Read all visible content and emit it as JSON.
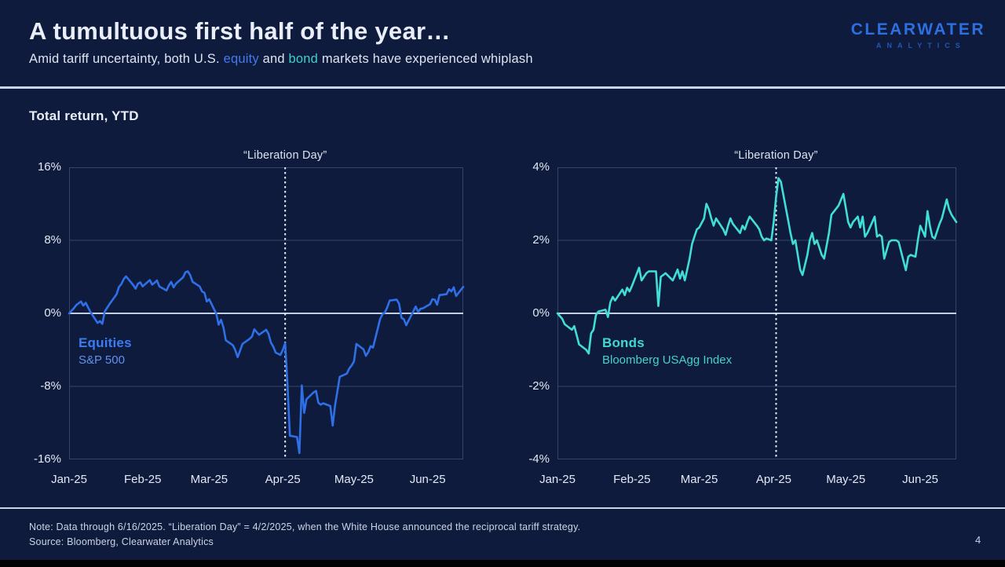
{
  "header": {
    "title": "A tumultuous first half of the year…",
    "subtitle_part1": "Amid tariff uncertainty, both U.S. ",
    "subtitle_equity_word": "equity",
    "subtitle_part2": " and ",
    "subtitle_bond_word": "bond",
    "subtitle_part3": " markets have experienced whiplash"
  },
  "logo": {
    "line1": "CLEARWATER",
    "line2": "ANALYTICS"
  },
  "section_label": "Total return, YTD",
  "footer": {
    "note": "Note: Data through 6/16/2025.  “Liberation Day” = 4/2/2025, when the White House announced the reciprocal tariff strategy.",
    "source": "Source: Bloomberg, Clearwater Analytics",
    "page_number": "4"
  },
  "colors": {
    "background": "#0e1b3d",
    "equity_blue": "#2f6fe8",
    "bond_teal": "#40ded6",
    "divider": "#ccd5ec",
    "zero_line": "#c4cee2",
    "gridline": "#35446b",
    "liberation_line": "#e8eef8"
  },
  "chart_data": [
    {
      "type": "line",
      "annotation": "“Liberation Day”",
      "annotation_day": 91,
      "annotation_meaning": "4/2/2025",
      "series_label": "Equities",
      "series_sublabel": "S&P 500",
      "line_color": "#2f6fe8",
      "label_color": "#3b7cf2",
      "sublabel_color": "#6190f0",
      "x_unit": "days since 2025-01-01",
      "y_unit": "percent, YTD total return",
      "x_range": [
        0,
        166
      ],
      "y_range": [
        -16,
        16
      ],
      "y_ticks": [
        {
          "value": 16,
          "label": "16%"
        },
        {
          "value": 8,
          "label": "8%"
        },
        {
          "value": 0,
          "label": "0%"
        },
        {
          "value": -8,
          "label": "-8%"
        },
        {
          "value": -16,
          "label": "-16%"
        }
      ],
      "x_ticks": [
        {
          "day": 0,
          "label": "Jan-25"
        },
        {
          "day": 31,
          "label": "Feb-25"
        },
        {
          "day": 59,
          "label": "Mar-25"
        },
        {
          "day": 90,
          "label": "Apr-25"
        },
        {
          "day": 120,
          "label": "May-25"
        },
        {
          "day": 151,
          "label": "Jun-25"
        }
      ],
      "points": [
        [
          0,
          0.0
        ],
        [
          2,
          0.55
        ],
        [
          3,
          0.9
        ],
        [
          5,
          1.3
        ],
        [
          6,
          0.85
        ],
        [
          7,
          1.15
        ],
        [
          9,
          0.15
        ],
        [
          12,
          -1.05
        ],
        [
          13,
          -0.85
        ],
        [
          14,
          -1.15
        ],
        [
          15,
          0.2
        ],
        [
          16,
          0.6
        ],
        [
          17,
          1.0
        ],
        [
          20,
          2.1
        ],
        [
          21,
          2.9
        ],
        [
          22,
          3.2
        ],
        [
          23,
          3.75
        ],
        [
          24,
          4.05
        ],
        [
          27,
          3.1
        ],
        [
          28,
          2.7
        ],
        [
          29,
          3.25
        ],
        [
          30,
          3.4
        ],
        [
          31,
          2.95
        ],
        [
          34,
          3.65
        ],
        [
          35,
          3.15
        ],
        [
          36,
          3.35
        ],
        [
          37,
          3.6
        ],
        [
          38,
          2.95
        ],
        [
          41,
          2.5
        ],
        [
          42,
          3.05
        ],
        [
          43,
          3.45
        ],
        [
          44,
          2.85
        ],
        [
          45,
          3.25
        ],
        [
          48,
          3.95
        ],
        [
          49,
          4.5
        ],
        [
          50,
          4.6
        ],
        [
          51,
          4.2
        ],
        [
          52,
          3.45
        ],
        [
          55,
          2.95
        ],
        [
          56,
          2.4
        ],
        [
          57,
          2.25
        ],
        [
          58,
          1.3
        ],
        [
          59,
          1.55
        ],
        [
          62,
          -0.05
        ],
        [
          63,
          -1.25
        ],
        [
          64,
          -0.7
        ],
        [
          65,
          -1.55
        ],
        [
          66,
          -2.95
        ],
        [
          69,
          -3.5
        ],
        [
          70,
          -4.05
        ],
        [
          71,
          -4.8
        ],
        [
          72,
          -4.1
        ],
        [
          73,
          -3.35
        ],
        [
          76,
          -2.8
        ],
        [
          77,
          -2.55
        ],
        [
          78,
          -1.75
        ],
        [
          79,
          -2.05
        ],
        [
          80,
          -2.35
        ],
        [
          83,
          -1.8
        ],
        [
          84,
          -2.25
        ],
        [
          85,
          -3.2
        ],
        [
          86,
          -3.65
        ],
        [
          87,
          -4.3
        ],
        [
          89,
          -4.55
        ],
        [
          90,
          -4.0
        ],
        [
          91,
          -3.25
        ],
        [
          92,
          -7.9
        ],
        [
          93,
          -13.4
        ],
        [
          96,
          -13.55
        ],
        [
          97,
          -15.3
        ],
        [
          98,
          -7.9
        ],
        [
          99,
          -10.9
        ],
        [
          100,
          -9.4
        ],
        [
          103,
          -8.65
        ],
        [
          104,
          -8.5
        ],
        [
          105,
          -9.8
        ],
        [
          106,
          -10.0
        ],
        [
          107,
          -9.85
        ],
        [
          110,
          -10.15
        ],
        [
          111,
          -12.3
        ],
        [
          112,
          -10.1
        ],
        [
          113,
          -8.55
        ],
        [
          114,
          -6.95
        ],
        [
          117,
          -6.6
        ],
        [
          118,
          -6.05
        ],
        [
          119,
          -5.7
        ],
        [
          120,
          -5.25
        ],
        [
          121,
          -3.35
        ],
        [
          124,
          -3.95
        ],
        [
          125,
          -4.65
        ],
        [
          126,
          -4.25
        ],
        [
          127,
          -3.6
        ],
        [
          128,
          -3.75
        ],
        [
          131,
          -0.6
        ],
        [
          132,
          -0.1
        ],
        [
          133,
          0.1
        ],
        [
          134,
          0.65
        ],
        [
          135,
          1.4
        ],
        [
          138,
          1.5
        ],
        [
          139,
          1.05
        ],
        [
          140,
          -0.5
        ],
        [
          141,
          -0.65
        ],
        [
          142,
          -1.3
        ],
        [
          146,
          0.75
        ],
        [
          147,
          0.15
        ],
        [
          148,
          0.5
        ],
        [
          149,
          0.55
        ],
        [
          152,
          1.0
        ],
        [
          153,
          1.55
        ],
        [
          154,
          1.5
        ],
        [
          155,
          0.95
        ],
        [
          156,
          2.0
        ],
        [
          159,
          2.1
        ],
        [
          160,
          2.65
        ],
        [
          161,
          2.4
        ],
        [
          162,
          2.85
        ],
        [
          163,
          1.9
        ],
        [
          166,
          2.9
        ]
      ]
    },
    {
      "type": "line",
      "annotation": "“Liberation Day”",
      "annotation_day": 91,
      "annotation_meaning": "4/2/2025",
      "series_label": "Bonds",
      "series_sublabel": "Bloomberg USAgg Index",
      "line_color": "#40ded6",
      "label_color": "#3fd9d2",
      "sublabel_color": "#45d2cc",
      "x_unit": "days since 2025-01-01",
      "y_unit": "percent, YTD total return",
      "x_range": [
        0,
        166
      ],
      "y_range": [
        -4,
        4
      ],
      "y_ticks": [
        {
          "value": 4,
          "label": "4%"
        },
        {
          "value": 2,
          "label": "2%"
        },
        {
          "value": 0,
          "label": "0%"
        },
        {
          "value": -2,
          "label": "-2%"
        },
        {
          "value": -4,
          "label": "-4%"
        }
      ],
      "x_ticks": [
        {
          "day": 0,
          "label": "Jan-25"
        },
        {
          "day": 31,
          "label": "Feb-25"
        },
        {
          "day": 59,
          "label": "Mar-25"
        },
        {
          "day": 90,
          "label": "Apr-25"
        },
        {
          "day": 120,
          "label": "May-25"
        },
        {
          "day": 151,
          "label": "Jun-25"
        }
      ],
      "points": [
        [
          0,
          0.0
        ],
        [
          2,
          -0.15
        ],
        [
          3,
          -0.3
        ],
        [
          6,
          -0.45
        ],
        [
          7,
          -0.35
        ],
        [
          8,
          -0.6
        ],
        [
          9,
          -0.85
        ],
        [
          12,
          -1.0
        ],
        [
          13,
          -1.1
        ],
        [
          14,
          -0.55
        ],
        [
          15,
          -0.45
        ],
        [
          16,
          -0.05
        ],
        [
          17,
          0.05
        ],
        [
          20,
          0.1
        ],
        [
          21,
          -0.1
        ],
        [
          22,
          0.3
        ],
        [
          23,
          0.45
        ],
        [
          24,
          0.35
        ],
        [
          27,
          0.65
        ],
        [
          28,
          0.5
        ],
        [
          29,
          0.7
        ],
        [
          30,
          0.6
        ],
        [
          31,
          0.75
        ],
        [
          34,
          1.25
        ],
        [
          35,
          0.9
        ],
        [
          36,
          1.0
        ],
        [
          37,
          1.1
        ],
        [
          38,
          1.15
        ],
        [
          41,
          1.15
        ],
        [
          42,
          0.2
        ],
        [
          43,
          1.0
        ],
        [
          44,
          1.05
        ],
        [
          45,
          1.1
        ],
        [
          48,
          0.9
        ],
        [
          49,
          1.05
        ],
        [
          50,
          1.2
        ],
        [
          51,
          0.95
        ],
        [
          52,
          1.15
        ],
        [
          53,
          0.9
        ],
        [
          54,
          1.2
        ],
        [
          55,
          1.5
        ],
        [
          56,
          1.9
        ],
        [
          58,
          2.3
        ],
        [
          59,
          2.35
        ],
        [
          61,
          2.6
        ],
        [
          62,
          3.0
        ],
        [
          63,
          2.85
        ],
        [
          64,
          2.6
        ],
        [
          65,
          2.4
        ],
        [
          66,
          2.6
        ],
        [
          69,
          2.3
        ],
        [
          70,
          2.15
        ],
        [
          71,
          2.4
        ],
        [
          72,
          2.6
        ],
        [
          73,
          2.45
        ],
        [
          76,
          2.2
        ],
        [
          77,
          2.4
        ],
        [
          78,
          2.3
        ],
        [
          79,
          2.5
        ],
        [
          80,
          2.65
        ],
        [
          83,
          2.4
        ],
        [
          84,
          2.3
        ],
        [
          85,
          2.1
        ],
        [
          86,
          2.0
        ],
        [
          87,
          2.05
        ],
        [
          89,
          2.0
        ],
        [
          90,
          2.5
        ],
        [
          91,
          3.2
        ],
        [
          92,
          3.7
        ],
        [
          93,
          3.6
        ],
        [
          96,
          2.55
        ],
        [
          97,
          2.2
        ],
        [
          98,
          1.9
        ],
        [
          99,
          2.0
        ],
        [
          101,
          1.2
        ],
        [
          102,
          1.05
        ],
        [
          104,
          1.6
        ],
        [
          105,
          2.0
        ],
        [
          106,
          2.2
        ],
        [
          107,
          1.9
        ],
        [
          108,
          2.0
        ],
        [
          110,
          1.6
        ],
        [
          111,
          1.5
        ],
        [
          113,
          2.2
        ],
        [
          114,
          2.7
        ],
        [
          117,
          2.95
        ],
        [
          119,
          3.27
        ],
        [
          121,
          2.5
        ],
        [
          122,
          2.35
        ],
        [
          123,
          2.5
        ],
        [
          125,
          2.65
        ],
        [
          126,
          2.35
        ],
        [
          127,
          2.65
        ],
        [
          128,
          2.1
        ],
        [
          129,
          2.2
        ],
        [
          132,
          2.65
        ],
        [
          133,
          2.1
        ],
        [
          134,
          2.15
        ],
        [
          135,
          2.1
        ],
        [
          136,
          1.5
        ],
        [
          138,
          1.95
        ],
        [
          139,
          2.0
        ],
        [
          141,
          2.0
        ],
        [
          142,
          1.95
        ],
        [
          145,
          1.18
        ],
        [
          146,
          1.55
        ],
        [
          147,
          1.6
        ],
        [
          149,
          1.55
        ],
        [
          150,
          2.0
        ],
        [
          151,
          2.4
        ],
        [
          153,
          2.1
        ],
        [
          154,
          2.8
        ],
        [
          155,
          2.4
        ],
        [
          156,
          2.1
        ],
        [
          157,
          2.05
        ],
        [
          159,
          2.45
        ],
        [
          160,
          2.6
        ],
        [
          162,
          3.12
        ],
        [
          163,
          2.85
        ],
        [
          164,
          2.7
        ],
        [
          166,
          2.5
        ]
      ]
    }
  ]
}
